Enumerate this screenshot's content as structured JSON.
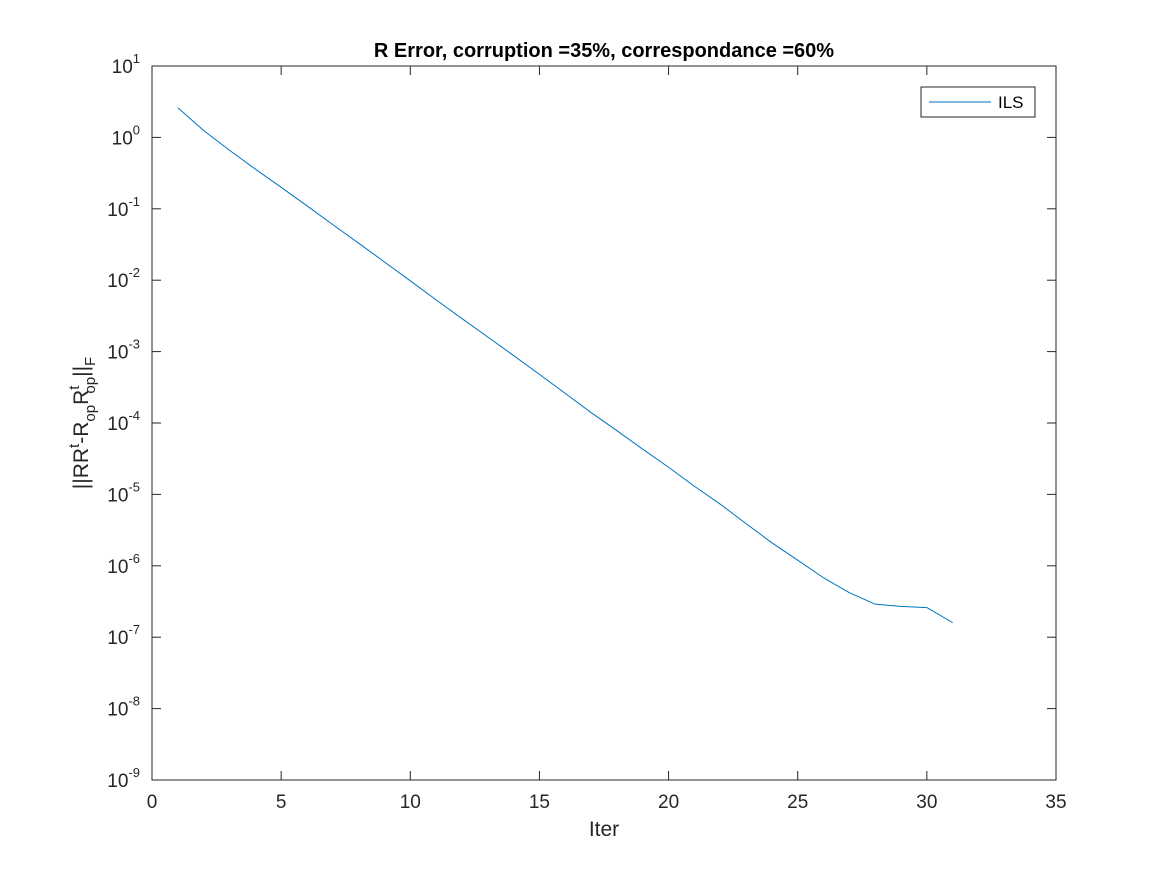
{
  "chart_data": {
    "type": "line",
    "title": "R Error, corruption =35%, correspondance =60%",
    "xlabel": "Iter",
    "ylabel": {
      "parts": [
        "||RR",
        "t",
        "-R",
        "op",
        "R",
        "t",
        "op",
        "||",
        "F"
      ]
    },
    "xlim": [
      0,
      35
    ],
    "ylim": [
      1e-09,
      10
    ],
    "yscale": "log",
    "grid": false,
    "legend_position": "top-right",
    "x_ticks": [
      "0",
      "5",
      "10",
      "15",
      "20",
      "25",
      "30",
      "35"
    ],
    "y_ticks": [
      {
        "base": "10",
        "exp": "-9"
      },
      {
        "base": "10",
        "exp": "-8"
      },
      {
        "base": "10",
        "exp": "-7"
      },
      {
        "base": "10",
        "exp": "-6"
      },
      {
        "base": "10",
        "exp": "-5"
      },
      {
        "base": "10",
        "exp": "-4"
      },
      {
        "base": "10",
        "exp": "-3"
      },
      {
        "base": "10",
        "exp": "-2"
      },
      {
        "base": "10",
        "exp": "-1"
      },
      {
        "base": "10",
        "exp": "0"
      },
      {
        "base": "10",
        "exp": "1"
      }
    ],
    "series": [
      {
        "name": "ILS",
        "color": "#0072BD",
        "x": [
          1,
          2,
          3,
          4,
          5,
          6,
          7,
          8,
          9,
          10,
          11,
          12,
          13,
          14,
          15,
          16,
          17,
          18,
          19,
          20,
          21,
          22,
          23,
          24,
          25,
          26,
          27,
          28,
          29,
          30,
          31
        ],
        "y": [
          2.6,
          1.25,
          0.66,
          0.36,
          0.2,
          0.11,
          0.06,
          0.033,
          0.018,
          0.0098,
          0.0053,
          0.0029,
          0.0016,
          0.00088,
          0.00048,
          0.00026,
          0.00014,
          7.8e-05,
          4.3e-05,
          2.4e-05,
          1.3e-05,
          7.3e-06,
          3.9e-06,
          2.1e-06,
          1.2e-06,
          6.8e-07,
          4.2e-07,
          2.9e-07,
          2.7e-07,
          2.6e-07,
          1.6e-07
        ]
      }
    ]
  }
}
